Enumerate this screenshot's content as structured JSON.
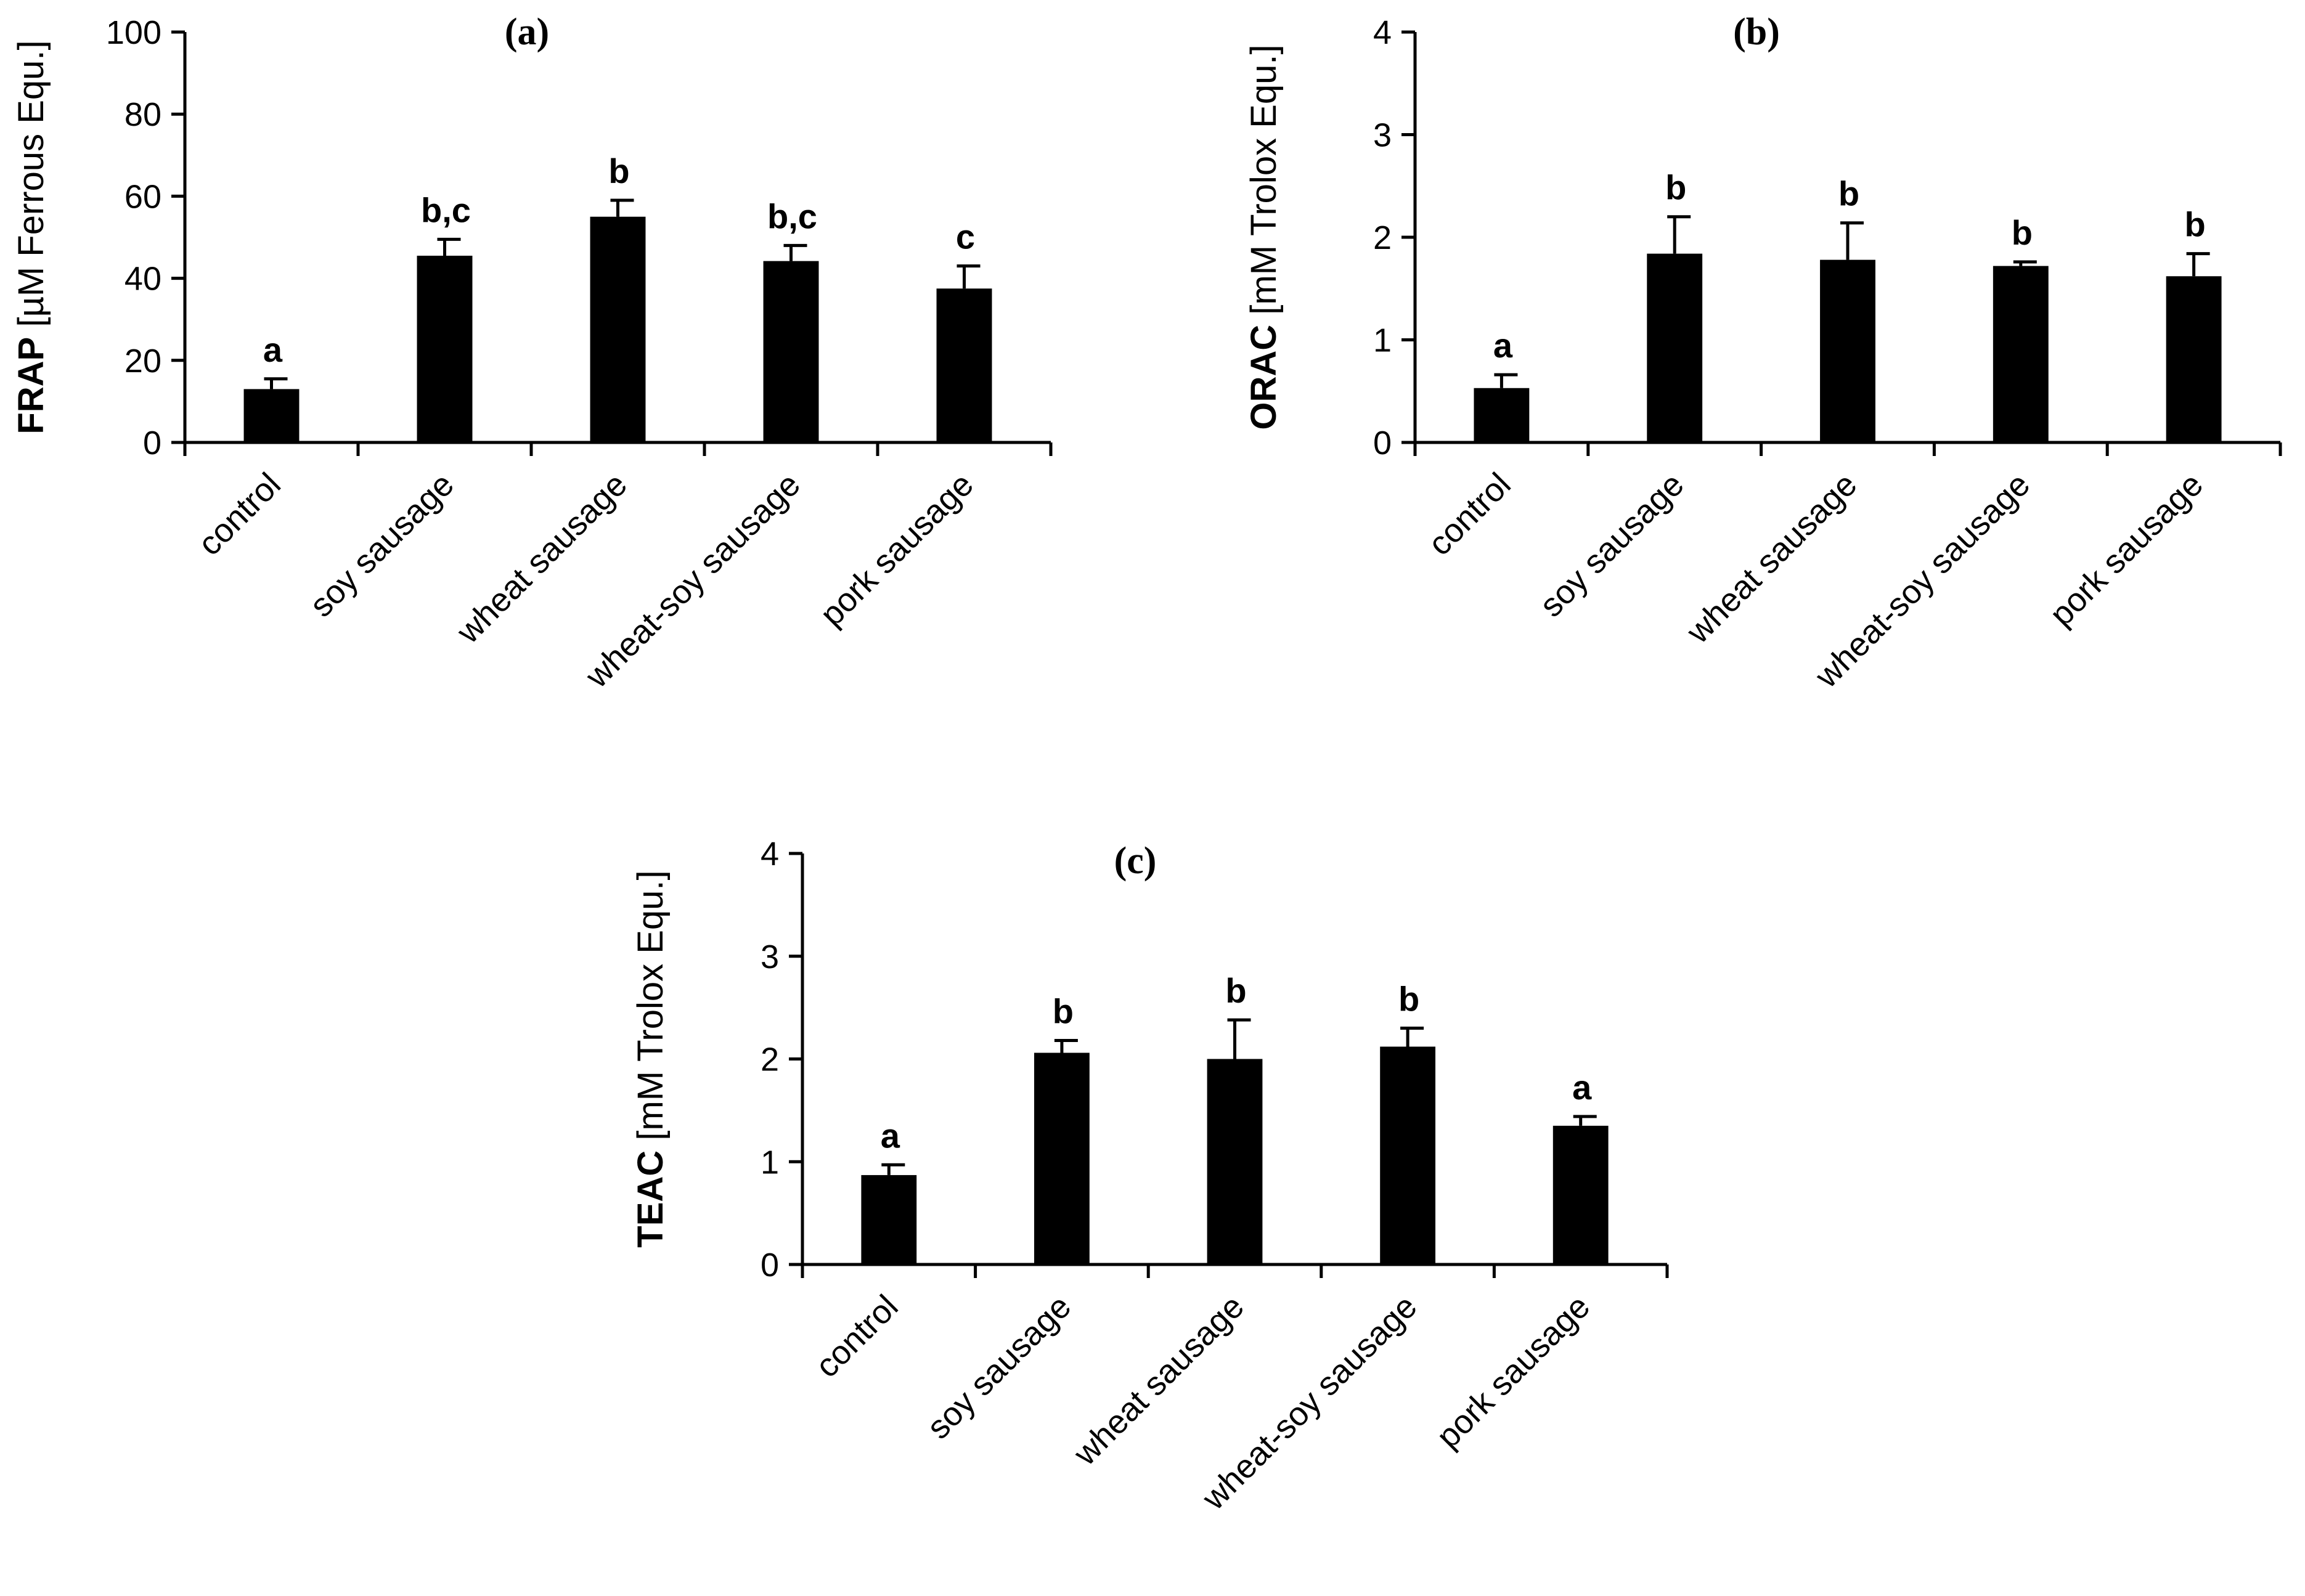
{
  "chart_data": [
    {
      "id": "a",
      "type": "bar",
      "title": "(a)",
      "ylabel_bold": "FRAP",
      "ylabel_rest": " [µM Ferrous Equ.]",
      "xlabel": "",
      "ylim": [
        0,
        100
      ],
      "yticks": [
        0,
        20,
        40,
        60,
        80,
        100
      ],
      "categories": [
        "control",
        "soy sausage",
        "wheat sausage",
        "wheat-soy sausage",
        "pork sausage"
      ],
      "values": [
        13,
        45.5,
        55,
        44.2,
        37.5
      ],
      "errors": [
        2.5,
        4,
        4,
        3.8,
        5.5
      ],
      "significance": [
        "a",
        "b,c",
        "b",
        "b,c",
        "c"
      ]
    },
    {
      "id": "b",
      "type": "bar",
      "title": "(b)",
      "ylabel_bold": "ORAC",
      "ylabel_rest": " [mM Trolox Equ.]",
      "xlabel": "",
      "ylim": [
        0,
        4
      ],
      "yticks": [
        0,
        1,
        2,
        3,
        4
      ],
      "categories": [
        "control",
        "soy sausage",
        "wheat sausage",
        "wheat-soy sausage",
        "pork sausage"
      ],
      "values": [
        0.53,
        1.84,
        1.78,
        1.72,
        1.62
      ],
      "errors": [
        0.13,
        0.36,
        0.36,
        0.04,
        0.22
      ],
      "significance": [
        "a",
        "b",
        "b",
        "b",
        "b"
      ]
    },
    {
      "id": "c",
      "type": "bar",
      "title": "(c)",
      "ylabel_bold": "TEAC",
      "ylabel_rest": " [mM Trolox Equ.]",
      "xlabel": "",
      "ylim": [
        0,
        4
      ],
      "yticks": [
        0,
        1,
        2,
        3,
        4
      ],
      "categories": [
        "control",
        "soy sausage",
        "wheat sausage",
        "wheat-soy sausage",
        "pork sausage"
      ],
      "values": [
        0.87,
        2.06,
        2.0,
        2.12,
        1.35
      ],
      "errors": [
        0.1,
        0.12,
        0.38,
        0.18,
        0.09
      ],
      "significance": [
        "a",
        "b",
        "b",
        "b",
        "a"
      ]
    }
  ]
}
